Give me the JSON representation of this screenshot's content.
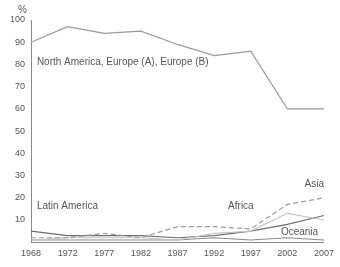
{
  "chart_data": {
    "type": "line",
    "ylabel": "%",
    "categories": [
      "1968",
      "1972",
      "1977",
      "1982",
      "1987",
      "1992",
      "1997",
      "2002",
      "2007"
    ],
    "series": [
      {
        "name": "North America, Europe (A), Europe (B)",
        "color": "#9a9a9a",
        "line_style": "solid",
        "values": [
          90,
          97,
          94,
          95,
          89,
          84,
          86,
          60,
          60
        ]
      },
      {
        "name": "Asia",
        "color": "#9a9a9a",
        "line_style": "dashed",
        "values": [
          2,
          2,
          4,
          2,
          7,
          7,
          6,
          17,
          20
        ]
      },
      {
        "name": "Africa",
        "color": "#c4c4c4",
        "line_style": "solid",
        "values": [
          1,
          2,
          2,
          2,
          1,
          4,
          5,
          13,
          10
        ]
      },
      {
        "name": "Latin America",
        "color": "#6e6e6e",
        "line_style": "solid",
        "values": [
          5,
          3,
          3,
          3,
          2,
          3,
          5,
          8,
          12
        ]
      },
      {
        "name": "Oceania",
        "color": "#8a8a8a",
        "line_style": "solid",
        "values": [
          1,
          1,
          1,
          1,
          1,
          2,
          1,
          2,
          1
        ]
      }
    ],
    "ylim": [
      0,
      100
    ],
    "yticks": [
      10,
      20,
      30,
      40,
      50,
      60,
      70,
      80,
      90,
      100
    ],
    "grid": false
  }
}
